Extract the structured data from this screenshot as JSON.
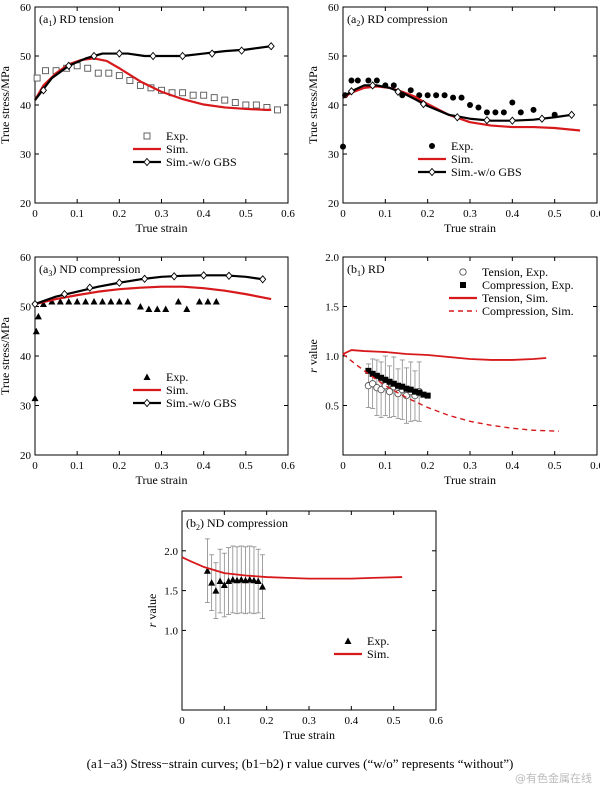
{
  "caption": "(a1−a3) Stress−strain curves; (b1−b2) r value curves (“w/o” represents “without”)",
  "watermark": "@有色金属在线",
  "chart_data": [
    {
      "id": "a1",
      "type": "line",
      "panel_prefix": "a",
      "panel_sub": "1",
      "title": "RD tension",
      "xlabel": "True strain",
      "ylabel": "True stress/MPa",
      "xlim": [
        0,
        0.6
      ],
      "ylim": [
        20,
        60
      ],
      "xticks": [
        0,
        0.1,
        0.2,
        0.3,
        0.4,
        0.5,
        0.6
      ],
      "yticks": [
        20,
        30,
        40,
        50,
        60
      ],
      "legend": {
        "position": "center-left-bottom",
        "entries": [
          "Exp.",
          "Sim.",
          "Sim.-w/o GBS"
        ]
      },
      "series": [
        {
          "name": "Exp.",
          "style": "open-square",
          "x": [
            0.005,
            0.025,
            0.05,
            0.075,
            0.1,
            0.125,
            0.15,
            0.175,
            0.2,
            0.225,
            0.25,
            0.275,
            0.3,
            0.325,
            0.35,
            0.375,
            0.4,
            0.425,
            0.45,
            0.475,
            0.5,
            0.525,
            0.55,
            0.575
          ],
          "y": [
            45.5,
            47,
            47,
            47.5,
            48,
            47.5,
            46.5,
            46.5,
            46,
            45,
            44,
            43.5,
            43,
            42.5,
            42.5,
            42,
            42,
            41.5,
            41,
            40.5,
            40,
            40,
            39.5,
            39
          ]
        },
        {
          "name": "Sim.",
          "style": "red-line",
          "x": [
            0,
            0.02,
            0.05,
            0.08,
            0.11,
            0.14,
            0.17,
            0.2,
            0.25,
            0.3,
            0.35,
            0.4,
            0.45,
            0.5,
            0.55,
            0.56
          ],
          "y": [
            41,
            44,
            46.5,
            48.3,
            49.2,
            49.5,
            49,
            47.5,
            44.8,
            42.7,
            41.2,
            40.1,
            39.5,
            39.2,
            39,
            39
          ]
        },
        {
          "name": "Sim.-w/o GBS",
          "style": "black-line-open-diamond",
          "x": [
            0,
            0.04,
            0.08,
            0.12,
            0.16,
            0.2,
            0.22,
            0.26,
            0.3,
            0.35,
            0.4,
            0.45,
            0.5,
            0.56
          ],
          "y": [
            41,
            45.5,
            48,
            49.5,
            50.5,
            50.5,
            50.5,
            50,
            50,
            50,
            50.5,
            51,
            51.3,
            52
          ],
          "markers_x": [
            0.02,
            0.08,
            0.14,
            0.2,
            0.28,
            0.35,
            0.42,
            0.49,
            0.56
          ],
          "markers_y": [
            43,
            48,
            50,
            50.5,
            50,
            50,
            50.5,
            51.1,
            52
          ]
        }
      ]
    },
    {
      "id": "a2",
      "type": "line",
      "panel_prefix": "a",
      "panel_sub": "2",
      "title": "RD compression",
      "xlabel": "True strain",
      "ylabel": "True stress/MPa",
      "xlim": [
        0,
        0.6
      ],
      "ylim": [
        20,
        60
      ],
      "xticks": [
        0,
        0.1,
        0.2,
        0.3,
        0.4,
        0.5,
        0.6
      ],
      "yticks": [
        20,
        30,
        40,
        50,
        60
      ],
      "legend": {
        "position": "bottom-center",
        "entries": [
          "Exp.",
          "Sim.",
          "Sim.-w/o GBS"
        ]
      },
      "series": [
        {
          "name": "Exp.",
          "style": "filled-circle",
          "x": [
            0,
            0.005,
            0.02,
            0.035,
            0.06,
            0.08,
            0.1,
            0.12,
            0.14,
            0.16,
            0.18,
            0.2,
            0.22,
            0.24,
            0.26,
            0.28,
            0.3,
            0.32,
            0.34,
            0.36,
            0.38,
            0.4,
            0.42,
            0.45,
            0.5
          ],
          "y": [
            31.5,
            42,
            45,
            45,
            45,
            45,
            44,
            44,
            42,
            43,
            42,
            42,
            42,
            42,
            41.5,
            41.5,
            40,
            39.5,
            38.5,
            38.5,
            38.5,
            40.5,
            38.5,
            39,
            38
          ]
        },
        {
          "name": "Sim.",
          "style": "red-line",
          "x": [
            0,
            0.02,
            0.05,
            0.08,
            0.11,
            0.14,
            0.17,
            0.2,
            0.25,
            0.3,
            0.35,
            0.4,
            0.45,
            0.5,
            0.56
          ],
          "y": [
            41.5,
            42.5,
            43.5,
            43.8,
            43.5,
            42.7,
            41.7,
            40.2,
            38,
            36.5,
            35.8,
            35.5,
            35.5,
            35.3,
            34.8
          ]
        },
        {
          "name": "Sim.-w/o GBS",
          "style": "black-line-open-diamond",
          "x": [
            0,
            0.02,
            0.05,
            0.08,
            0.11,
            0.14,
            0.17,
            0.2,
            0.25,
            0.3,
            0.35,
            0.4,
            0.45,
            0.5,
            0.54
          ],
          "y": [
            41.5,
            42.8,
            44,
            44,
            43.5,
            42.5,
            41.2,
            39.8,
            38,
            37.2,
            36.8,
            36.8,
            37,
            37.5,
            38
          ],
          "markers_x": [
            0.02,
            0.07,
            0.13,
            0.19,
            0.27,
            0.34,
            0.4,
            0.47,
            0.54
          ],
          "markers_y": [
            42.8,
            44,
            42.7,
            40.2,
            37.5,
            36.9,
            36.8,
            37.2,
            38
          ]
        }
      ]
    },
    {
      "id": "a3",
      "type": "line",
      "panel_prefix": "a",
      "panel_sub": "3",
      "title": "ND compression",
      "xlabel": "True strain",
      "ylabel": "True stress/MPa",
      "xlim": [
        0,
        0.6
      ],
      "ylim": [
        20,
        60
      ],
      "xticks": [
        0,
        0.1,
        0.2,
        0.3,
        0.4,
        0.5,
        0.6
      ],
      "yticks": [
        20,
        30,
        40,
        50,
        60
      ],
      "legend": {
        "position": "center-left-bottom",
        "entries": [
          "Exp.",
          "Sim.",
          "Sim.-w/o GBS"
        ]
      },
      "series": [
        {
          "name": "Exp.",
          "style": "filled-triangle",
          "x": [
            0,
            0.003,
            0.008,
            0.02,
            0.04,
            0.06,
            0.08,
            0.1,
            0.12,
            0.14,
            0.16,
            0.18,
            0.2,
            0.22,
            0.25,
            0.27,
            0.29,
            0.31,
            0.34,
            0.36,
            0.39,
            0.41,
            0.43
          ],
          "y": [
            31.5,
            45,
            48,
            50.5,
            51,
            51,
            51,
            51,
            51,
            51,
            51,
            51,
            51,
            51,
            50,
            49.5,
            49.5,
            49.5,
            51,
            49.5,
            51,
            51,
            51
          ]
        },
        {
          "name": "Sim.",
          "style": "red-line",
          "x": [
            0,
            0.05,
            0.1,
            0.15,
            0.2,
            0.25,
            0.3,
            0.35,
            0.4,
            0.45,
            0.5,
            0.56
          ],
          "y": [
            50.5,
            51.5,
            52.3,
            53,
            53.5,
            53.8,
            54,
            54,
            53.7,
            53.2,
            52.5,
            51.5
          ]
        },
        {
          "name": "Sim.-w/o GBS",
          "style": "black-line-open-diamond",
          "x": [
            0,
            0.05,
            0.1,
            0.15,
            0.2,
            0.25,
            0.3,
            0.35,
            0.4,
            0.45,
            0.5,
            0.54
          ],
          "y": [
            50.5,
            52,
            53,
            54,
            54.8,
            55.5,
            56,
            56.2,
            56.3,
            56.3,
            56,
            55.5
          ],
          "markers_x": [
            0,
            0.07,
            0.13,
            0.2,
            0.26,
            0.33,
            0.4,
            0.46,
            0.54
          ],
          "markers_y": [
            50.5,
            52.5,
            53.8,
            54.8,
            55.6,
            56.1,
            56.3,
            56.2,
            55.5
          ]
        }
      ]
    },
    {
      "id": "b1",
      "type": "line",
      "panel_prefix": "b",
      "panel_sub": "1",
      "title": "RD",
      "xlabel": "True strain",
      "ylabel_italic": "r",
      "ylabel": " value",
      "xlim": [
        0,
        0.6
      ],
      "ylim": [
        0,
        2.0
      ],
      "xticks": [
        0,
        0.1,
        0.2,
        0.3,
        0.4,
        0.5,
        0.6
      ],
      "yticks": [
        0.5,
        1.0,
        1.5,
        2.0
      ],
      "legend": {
        "position": "top-right",
        "entries": [
          "Tension, Exp.",
          "Compression, Exp.",
          "Tension, Sim.",
          "Compression, Sim."
        ]
      },
      "series": [
        {
          "name": "Tension, Exp.",
          "style": "open-circle-errorbar",
          "x": [
            0.06,
            0.07,
            0.08,
            0.09,
            0.1,
            0.11,
            0.12,
            0.13,
            0.14,
            0.15,
            0.16,
            0.17,
            0.18
          ],
          "y": [
            0.7,
            0.72,
            0.68,
            0.66,
            0.7,
            0.64,
            0.69,
            0.62,
            0.66,
            0.6,
            0.64,
            0.6,
            0.64
          ],
          "err": [
            0.22,
            0.25,
            0.28,
            0.28,
            0.3,
            0.26,
            0.3,
            0.25,
            0.3,
            0.28,
            0.3,
            0.25,
            0.3
          ]
        },
        {
          "name": "Compression, Exp.",
          "style": "filled-square",
          "x": [
            0.06,
            0.07,
            0.08,
            0.09,
            0.1,
            0.11,
            0.12,
            0.13,
            0.14,
            0.15,
            0.16,
            0.17,
            0.18,
            0.19,
            0.2
          ],
          "y": [
            0.85,
            0.82,
            0.8,
            0.78,
            0.76,
            0.74,
            0.72,
            0.7,
            0.69,
            0.67,
            0.66,
            0.64,
            0.63,
            0.61,
            0.6
          ]
        },
        {
          "name": "Tension, Sim.",
          "style": "red-line",
          "x": [
            0,
            0.02,
            0.05,
            0.1,
            0.15,
            0.2,
            0.25,
            0.3,
            0.35,
            0.4,
            0.45,
            0.48
          ],
          "y": [
            1.02,
            1.06,
            1.05,
            1.04,
            1.02,
            1.01,
            0.99,
            0.97,
            0.96,
            0.96,
            0.97,
            0.98
          ]
        },
        {
          "name": "Compression, Sim.",
          "style": "red-dashed",
          "x": [
            0,
            0.02,
            0.05,
            0.1,
            0.15,
            0.2,
            0.25,
            0.3,
            0.35,
            0.4,
            0.45,
            0.51
          ],
          "y": [
            1.02,
            0.95,
            0.85,
            0.7,
            0.58,
            0.48,
            0.4,
            0.34,
            0.3,
            0.27,
            0.25,
            0.24
          ]
        }
      ]
    },
    {
      "id": "b2",
      "type": "line",
      "panel_prefix": "b",
      "panel_sub": "2",
      "title": "ND compression",
      "xlabel": "True strain",
      "ylabel_italic": "r",
      "ylabel": " value",
      "xlim": [
        0,
        0.6
      ],
      "ylim": [
        0,
        2.5
      ],
      "xticks": [
        0,
        0.1,
        0.2,
        0.3,
        0.4,
        0.5,
        0.6
      ],
      "yticks": [
        1.0,
        1.5,
        2.0
      ],
      "legend": {
        "position": "right-middle",
        "entries": [
          "Exp.",
          "Sim."
        ]
      },
      "series": [
        {
          "name": "Exp.",
          "style": "filled-triangle-errorbar",
          "x": [
            0.06,
            0.07,
            0.08,
            0.09,
            0.1,
            0.11,
            0.12,
            0.13,
            0.14,
            0.15,
            0.16,
            0.17,
            0.18,
            0.19
          ],
          "y": [
            1.75,
            1.6,
            1.5,
            1.62,
            1.57,
            1.62,
            1.64,
            1.63,
            1.64,
            1.63,
            1.64,
            1.63,
            1.62,
            1.55
          ],
          "err": [
            0.4,
            0.35,
            0.35,
            0.4,
            0.4,
            0.42,
            0.42,
            0.42,
            0.42,
            0.42,
            0.42,
            0.42,
            0.4,
            0.4
          ]
        },
        {
          "name": "Sim.",
          "style": "red-line",
          "x": [
            0,
            0.02,
            0.05,
            0.1,
            0.15,
            0.2,
            0.25,
            0.3,
            0.35,
            0.4,
            0.45,
            0.52
          ],
          "y": [
            1.92,
            1.87,
            1.8,
            1.72,
            1.69,
            1.67,
            1.66,
            1.65,
            1.65,
            1.65,
            1.66,
            1.67
          ]
        }
      ]
    }
  ]
}
